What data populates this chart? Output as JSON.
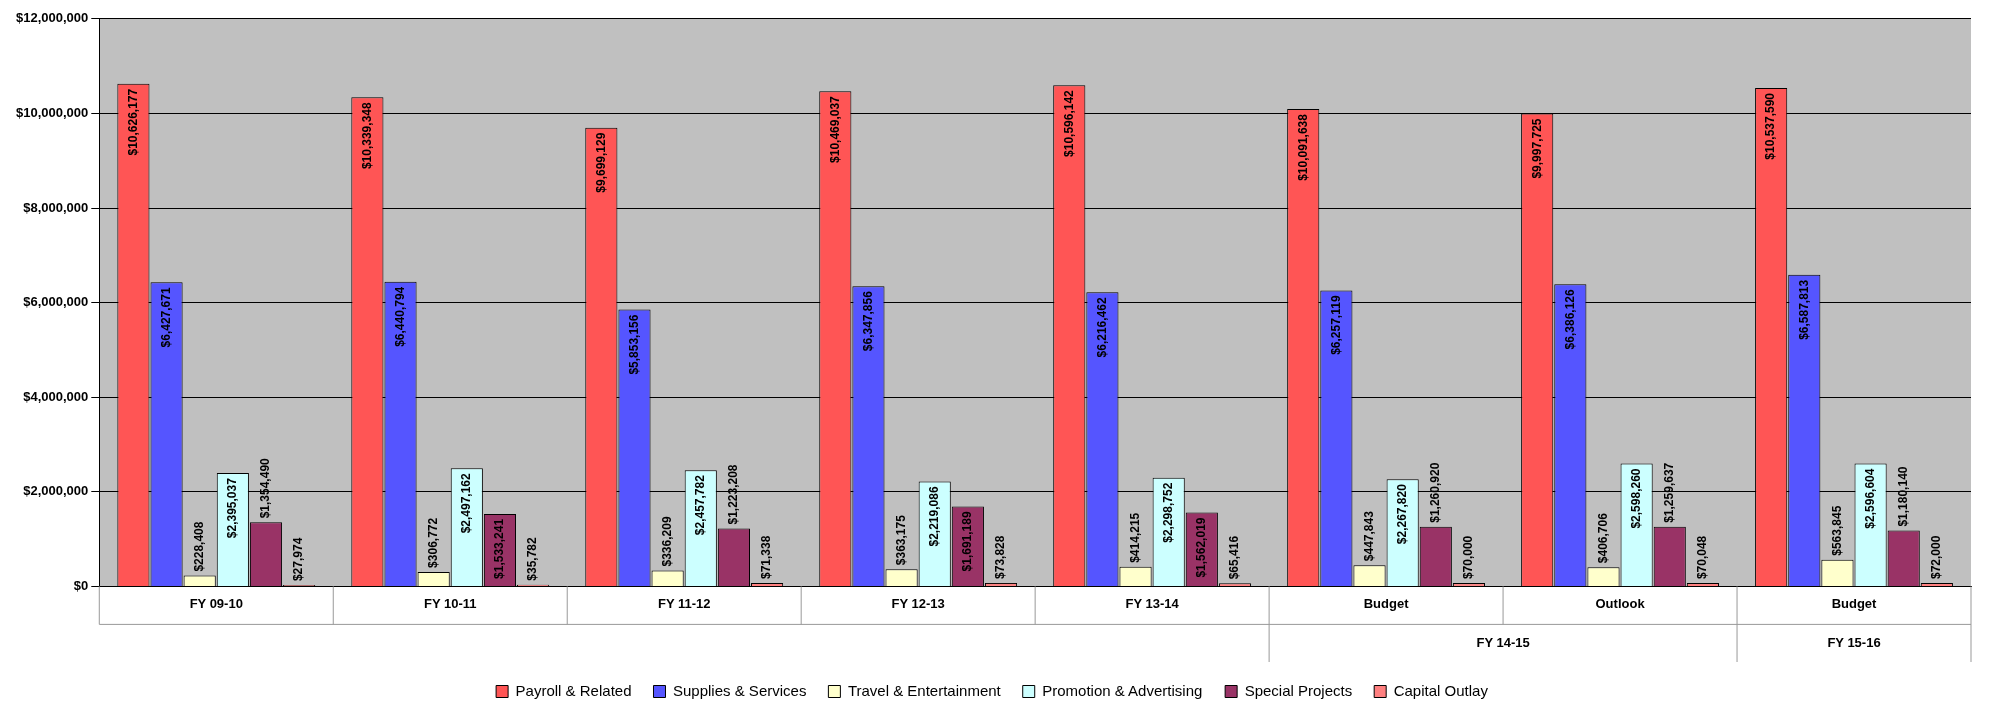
{
  "chart_data": {
    "type": "bar",
    "categories": [
      "FY 09-10",
      "FY 10-11",
      "FY 11-12",
      "FY 12-13",
      "FY 13-14",
      "Budget",
      "Outlook",
      "Budget"
    ],
    "series": [
      {
        "name": "Payroll & Related",
        "color": "#ff5555",
        "values": [
          10626177,
          10339348,
          9699129,
          10469037,
          10596142,
          10091638,
          9997725,
          10537590
        ],
        "value_labels": [
          "$10,626,177",
          "$10,339,348",
          "$9,699,129",
          "$10,469,037",
          "$10,596,142",
          "$10,091,638",
          "$9,997,725",
          "$10,537,590"
        ]
      },
      {
        "name": "Supplies & Services",
        "color": "#5555ff",
        "values": [
          6427671,
          6440794,
          5853156,
          6347856,
          6216462,
          6257119,
          6386126,
          6587813
        ],
        "value_labels": [
          "$6,427,671",
          "$6,440,794",
          "$5,853,156",
          "$6,347,856",
          "$6,216,462",
          "$6,257,119",
          "$6,386,126",
          "$6,587,813"
        ]
      },
      {
        "name": "Travel & Entertainment",
        "color": "#ffffcc",
        "values": [
          228408,
          306772,
          336209,
          363175,
          414215,
          447843,
          406706,
          563845
        ],
        "value_labels": [
          "$228,408",
          "$306,772",
          "$336,209",
          "$363,175",
          "$414,215",
          "$447,843",
          "$406,706",
          "$563,845"
        ]
      },
      {
        "name": "Promotion & Advertising",
        "color": "#ccffff",
        "values": [
          2395037,
          2497162,
          2457782,
          2219086,
          2298752,
          2267820,
          2598260,
          2596604
        ],
        "value_labels": [
          "$2,395,037",
          "$2,497,162",
          "$2,457,782",
          "$2,219,086",
          "$2,298,752",
          "$2,267,820",
          "$2,598,260",
          "$2,596,604"
        ]
      },
      {
        "name": "Special Projects",
        "color": "#993366",
        "values": [
          1354490,
          1533241,
          1223208,
          1691189,
          1562019,
          1260920,
          1259637,
          1180140
        ],
        "value_labels": [
          "$1,354,490",
          "$1,533,241",
          "$1,223,208",
          "$1,691,189",
          "$1,562,019",
          "$1,260,920",
          "$1,259,637",
          "$1,180,140"
        ]
      },
      {
        "name": "Capital Outlay",
        "color": "#ff8080",
        "values": [
          27974,
          35782,
          71338,
          73828,
          65416,
          70000,
          70048,
          72000
        ],
        "value_labels": [
          "$27,974",
          "$35,782",
          "$71,338",
          "$73,828",
          "$65,416",
          "$70,000",
          "$70,048",
          "$72,000"
        ]
      }
    ],
    "ylim": [
      0,
      12000000
    ],
    "yticks": [
      {
        "value": 0,
        "label": "$0"
      },
      {
        "value": 2000000,
        "label": "$2,000,000"
      },
      {
        "value": 4000000,
        "label": "$4,000,000"
      },
      {
        "value": 6000000,
        "label": "$6,000,000"
      },
      {
        "value": 8000000,
        "label": "$8,000,000"
      },
      {
        "value": 10000000,
        "label": "$10,000,000"
      },
      {
        "value": 12000000,
        "label": "$12,000,000"
      }
    ],
    "grid": "y",
    "legend": "bottom",
    "annotations": [
      "FY 14-15",
      "FY 15-16"
    ]
  }
}
